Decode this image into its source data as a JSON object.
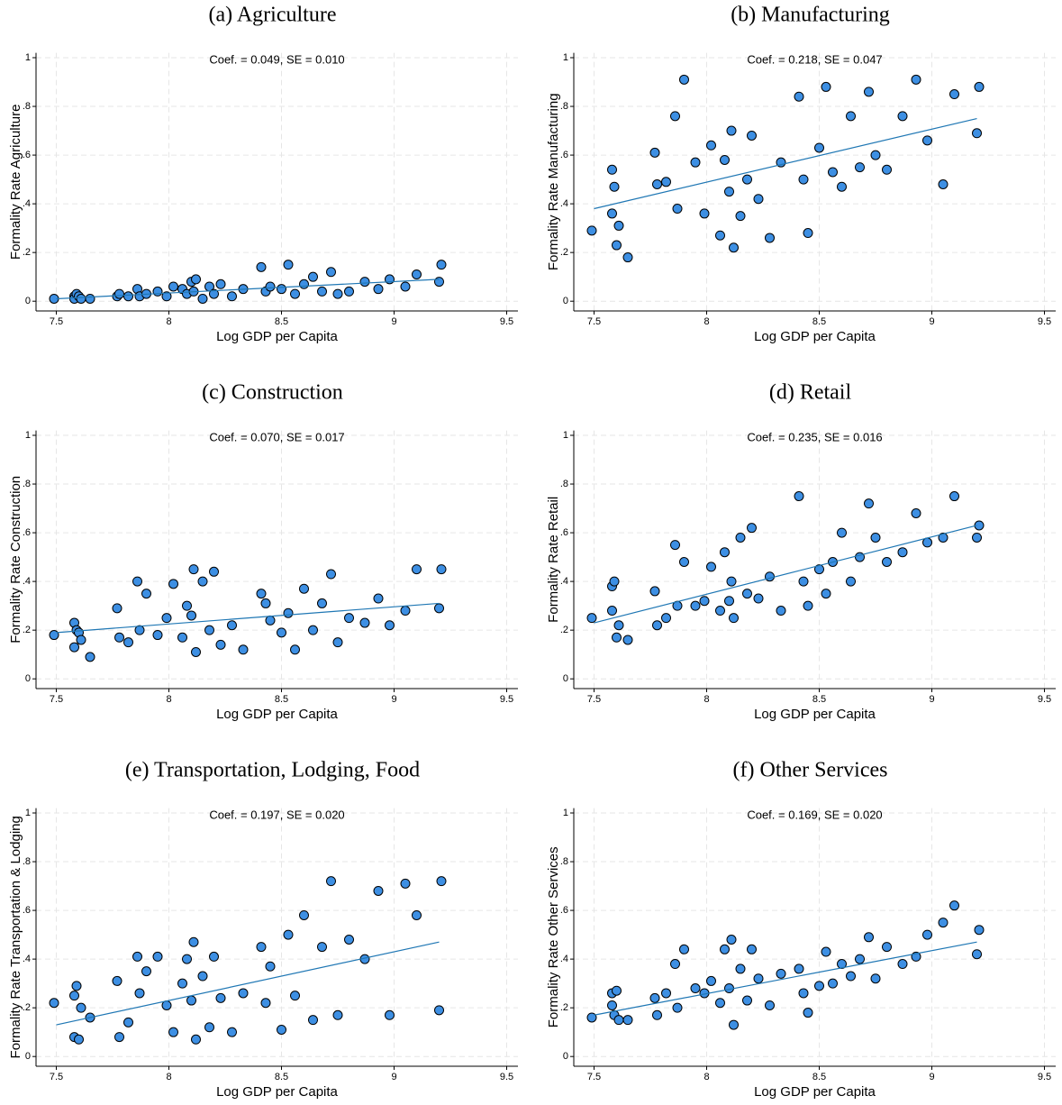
{
  "chart_data": [
    {
      "type": "scatter",
      "title": "(a)  Agriculture",
      "x_label": "Log GDP per Capita",
      "y_label": "Formality Rate Agriculture",
      "annotation": "Coef. =  0.049, SE =  0.010",
      "x": [
        7.49,
        7.58,
        7.58,
        7.59,
        7.6,
        7.61,
        7.65,
        7.77,
        7.78,
        7.82,
        7.86,
        7.87,
        7.9,
        7.95,
        7.99,
        8.02,
        8.06,
        8.08,
        8.1,
        8.11,
        8.12,
        8.15,
        8.18,
        8.2,
        8.23,
        8.28,
        8.33,
        8.41,
        8.43,
        8.45,
        8.5,
        8.53,
        8.56,
        8.6,
        8.64,
        8.68,
        8.72,
        8.75,
        8.8,
        8.87,
        8.93,
        8.98,
        9.05,
        9.1,
        9.2,
        9.21
      ],
      "y": [
        0.01,
        0.02,
        0.01,
        0.03,
        0.02,
        0.01,
        0.01,
        0.02,
        0.03,
        0.02,
        0.05,
        0.02,
        0.03,
        0.04,
        0.02,
        0.06,
        0.05,
        0.03,
        0.08,
        0.04,
        0.09,
        0.01,
        0.06,
        0.03,
        0.07,
        0.02,
        0.05,
        0.14,
        0.04,
        0.06,
        0.05,
        0.15,
        0.03,
        0.07,
        0.1,
        0.04,
        0.12,
        0.03,
        0.04,
        0.08,
        0.05,
        0.09,
        0.06,
        0.11,
        0.08,
        0.15
      ],
      "fit": {
        "x": [
          7.5,
          9.2
        ],
        "y": [
          0.01,
          0.09
        ]
      },
      "color": "#3d8fe3",
      "line_color": "#1f77b4",
      "grid": true,
      "xlim": [
        7.41,
        9.55
      ],
      "ylim": [
        -0.04,
        1.02
      ],
      "xticks": [
        7.5,
        8,
        8.5,
        9,
        9.5
      ],
      "yticks": [
        0,
        {
          "value": 0.2,
          "label": ".2"
        },
        {
          "value": 0.4,
          "label": ".4"
        },
        {
          "value": 0.6,
          "label": ".6"
        },
        {
          "value": 0.8,
          "label": ".8"
        },
        1
      ]
    },
    {
      "type": "scatter",
      "title": "(b)  Manufacturing",
      "x_label": "Log GDP per Capita",
      "y_label": "Formality Rate Manufacturing",
      "annotation": "Coef. =  0.218, SE =  0.047",
      "x": [
        7.49,
        7.58,
        7.58,
        7.59,
        7.6,
        7.61,
        7.65,
        7.77,
        7.78,
        7.82,
        7.86,
        7.87,
        7.9,
        7.95,
        7.99,
        8.02,
        8.06,
        8.08,
        8.1,
        8.11,
        8.12,
        8.15,
        8.18,
        8.2,
        8.23,
        8.28,
        8.33,
        8.41,
        8.43,
        8.45,
        8.5,
        8.53,
        8.56,
        8.6,
        8.64,
        8.68,
        8.72,
        8.75,
        8.8,
        8.87,
        8.93,
        8.98,
        9.05,
        9.1,
        9.2,
        9.21
      ],
      "y": [
        0.29,
        0.54,
        0.36,
        0.47,
        0.23,
        0.31,
        0.18,
        0.61,
        0.48,
        0.49,
        0.76,
        0.38,
        0.91,
        0.57,
        0.36,
        0.64,
        0.27,
        0.58,
        0.45,
        0.7,
        0.22,
        0.35,
        0.5,
        0.68,
        0.42,
        0.26,
        0.57,
        0.84,
        0.5,
        0.28,
        0.63,
        0.88,
        0.53,
        0.47,
        0.76,
        0.55,
        0.86,
        0.6,
        0.54,
        0.76,
        0.91,
        0.66,
        0.48,
        0.85,
        0.69,
        0.88
      ],
      "fit": {
        "x": [
          7.5,
          9.2
        ],
        "y": [
          0.38,
          0.75
        ]
      },
      "color": "#3d8fe3",
      "line_color": "#1f77b4",
      "grid": true,
      "xlim": [
        7.41,
        9.55
      ],
      "ylim": [
        -0.04,
        1.02
      ],
      "xticks": [
        7.5,
        8,
        8.5,
        9,
        9.5
      ],
      "yticks": [
        0,
        {
          "value": 0.2,
          "label": ".2"
        },
        {
          "value": 0.4,
          "label": ".4"
        },
        {
          "value": 0.6,
          "label": ".6"
        },
        {
          "value": 0.8,
          "label": ".8"
        },
        1
      ]
    },
    {
      "type": "scatter",
      "title": "(c)  Construction",
      "x_label": "Log GDP per Capita",
      "y_label": "Formality Rate Construction",
      "annotation": "Coef. =  0.070, SE =  0.017",
      "x": [
        7.49,
        7.58,
        7.58,
        7.59,
        7.6,
        7.61,
        7.65,
        7.77,
        7.78,
        7.82,
        7.86,
        7.87,
        7.9,
        7.95,
        7.99,
        8.02,
        8.06,
        8.08,
        8.1,
        8.11,
        8.12,
        8.15,
        8.18,
        8.2,
        8.23,
        8.28,
        8.33,
        8.41,
        8.43,
        8.45,
        8.5,
        8.53,
        8.56,
        8.6,
        8.64,
        8.68,
        8.72,
        8.75,
        8.8,
        8.87,
        8.93,
        8.98,
        9.05,
        9.1,
        9.2,
        9.21
      ],
      "y": [
        0.18,
        0.23,
        0.13,
        0.2,
        0.19,
        0.16,
        0.09,
        0.29,
        0.17,
        0.15,
        0.4,
        0.2,
        0.35,
        0.18,
        0.25,
        0.39,
        0.17,
        0.3,
        0.26,
        0.45,
        0.11,
        0.4,
        0.2,
        0.44,
        0.14,
        0.22,
        0.12,
        0.35,
        0.31,
        0.24,
        0.19,
        0.27,
        0.12,
        0.37,
        0.2,
        0.31,
        0.43,
        0.15,
        0.25,
        0.23,
        0.33,
        0.22,
        0.28,
        0.45,
        0.29,
        0.45
      ],
      "fit": {
        "x": [
          7.5,
          9.2
        ],
        "y": [
          0.19,
          0.31
        ]
      },
      "color": "#3d8fe3",
      "line_color": "#1f77b4",
      "grid": true,
      "xlim": [
        7.41,
        9.55
      ],
      "ylim": [
        -0.04,
        1.02
      ],
      "xticks": [
        7.5,
        8,
        8.5,
        9,
        9.5
      ],
      "yticks": [
        0,
        {
          "value": 0.2,
          "label": ".2"
        },
        {
          "value": 0.4,
          "label": ".4"
        },
        {
          "value": 0.6,
          "label": ".6"
        },
        {
          "value": 0.8,
          "label": ".8"
        },
        1
      ]
    },
    {
      "type": "scatter",
      "title": "(d)  Retail",
      "x_label": "Log GDP per Capita",
      "y_label": "Formality Rate Retail",
      "annotation": "Coef. =  0.235, SE =  0.016",
      "x": [
        7.49,
        7.58,
        7.58,
        7.59,
        7.6,
        7.61,
        7.65,
        7.77,
        7.78,
        7.82,
        7.86,
        7.87,
        7.9,
        7.95,
        7.99,
        8.02,
        8.06,
        8.08,
        8.1,
        8.11,
        8.12,
        8.15,
        8.18,
        8.2,
        8.23,
        8.28,
        8.33,
        8.41,
        8.43,
        8.45,
        8.5,
        8.53,
        8.56,
        8.6,
        8.64,
        8.68,
        8.72,
        8.75,
        8.8,
        8.87,
        8.93,
        8.98,
        9.05,
        9.1,
        9.2,
        9.21
      ],
      "y": [
        0.25,
        0.38,
        0.28,
        0.4,
        0.17,
        0.22,
        0.16,
        0.36,
        0.22,
        0.25,
        0.55,
        0.3,
        0.48,
        0.3,
        0.32,
        0.46,
        0.28,
        0.52,
        0.32,
        0.4,
        0.25,
        0.58,
        0.35,
        0.62,
        0.33,
        0.42,
        0.28,
        0.75,
        0.4,
        0.3,
        0.45,
        0.35,
        0.48,
        0.6,
        0.4,
        0.5,
        0.72,
        0.58,
        0.48,
        0.52,
        0.68,
        0.56,
        0.58,
        0.75,
        0.58,
        0.63
      ],
      "fit": {
        "x": [
          7.5,
          9.2
        ],
        "y": [
          0.23,
          0.63
        ]
      },
      "color": "#3d8fe3",
      "line_color": "#1f77b4",
      "grid": true,
      "xlim": [
        7.41,
        9.55
      ],
      "ylim": [
        -0.04,
        1.02
      ],
      "xticks": [
        7.5,
        8,
        8.5,
        9,
        9.5
      ],
      "yticks": [
        0,
        {
          "value": 0.2,
          "label": ".2"
        },
        {
          "value": 0.4,
          "label": ".4"
        },
        {
          "value": 0.6,
          "label": ".6"
        },
        {
          "value": 0.8,
          "label": ".8"
        },
        1
      ]
    },
    {
      "type": "scatter",
      "title": "(e)  Transportation, Lodging, Food",
      "x_label": "Log GDP per Capita",
      "y_label": "Formality Rate Transportation & Lodging",
      "annotation": "Coef. =  0.197, SE =  0.020",
      "x": [
        7.49,
        7.58,
        7.58,
        7.59,
        7.6,
        7.61,
        7.65,
        7.77,
        7.78,
        7.82,
        7.86,
        7.87,
        7.9,
        7.95,
        7.99,
        8.02,
        8.06,
        8.08,
        8.1,
        8.11,
        8.12,
        8.15,
        8.18,
        8.2,
        8.23,
        8.28,
        8.33,
        8.41,
        8.43,
        8.45,
        8.5,
        8.53,
        8.56,
        8.6,
        8.64,
        8.68,
        8.72,
        8.75,
        8.8,
        8.87,
        8.93,
        8.98,
        9.05,
        9.1,
        9.2,
        9.21
      ],
      "y": [
        0.22,
        0.25,
        0.08,
        0.29,
        0.07,
        0.2,
        0.16,
        0.31,
        0.08,
        0.14,
        0.41,
        0.26,
        0.35,
        0.41,
        0.21,
        0.1,
        0.3,
        0.4,
        0.23,
        0.47,
        0.07,
        0.33,
        0.12,
        0.41,
        0.24,
        0.1,
        0.26,
        0.45,
        0.22,
        0.37,
        0.11,
        0.5,
        0.25,
        0.58,
        0.15,
        0.45,
        0.72,
        0.17,
        0.48,
        0.4,
        0.68,
        0.17,
        0.71,
        0.58,
        0.19,
        0.72
      ],
      "fit": {
        "x": [
          7.5,
          9.2
        ],
        "y": [
          0.13,
          0.47
        ]
      },
      "color": "#3d8fe3",
      "line_color": "#1f77b4",
      "grid": true,
      "xlim": [
        7.41,
        9.55
      ],
      "ylim": [
        -0.04,
        1.02
      ],
      "xticks": [
        7.5,
        8,
        8.5,
        9,
        9.5
      ],
      "yticks": [
        0,
        {
          "value": 0.2,
          "label": ".2"
        },
        {
          "value": 0.4,
          "label": ".4"
        },
        {
          "value": 0.6,
          "label": ".6"
        },
        {
          "value": 0.8,
          "label": ".8"
        },
        1
      ]
    },
    {
      "type": "scatter",
      "title": "(f)  Other Services",
      "x_label": "Log GDP per Capita",
      "y_label": "Formality Rate Other Services",
      "annotation": "Coef. =  0.169, SE =  0.020",
      "x": [
        7.49,
        7.58,
        7.58,
        7.59,
        7.6,
        7.61,
        7.65,
        7.77,
        7.78,
        7.82,
        7.86,
        7.87,
        7.9,
        7.95,
        7.99,
        8.02,
        8.06,
        8.08,
        8.1,
        8.11,
        8.12,
        8.15,
        8.18,
        8.2,
        8.23,
        8.28,
        8.33,
        8.41,
        8.43,
        8.45,
        8.5,
        8.53,
        8.56,
        8.6,
        8.64,
        8.68,
        8.72,
        8.75,
        8.8,
        8.87,
        8.93,
        8.98,
        9.05,
        9.1,
        9.2,
        9.21
      ],
      "y": [
        0.16,
        0.26,
        0.21,
        0.17,
        0.27,
        0.15,
        0.15,
        0.24,
        0.17,
        0.26,
        0.38,
        0.2,
        0.44,
        0.28,
        0.26,
        0.31,
        0.22,
        0.44,
        0.28,
        0.48,
        0.13,
        0.36,
        0.23,
        0.44,
        0.32,
        0.21,
        0.34,
        0.36,
        0.26,
        0.18,
        0.29,
        0.43,
        0.3,
        0.38,
        0.33,
        0.4,
        0.49,
        0.32,
        0.45,
        0.38,
        0.41,
        0.5,
        0.55,
        0.62,
        0.42,
        0.52
      ],
      "fit": {
        "x": [
          7.5,
          9.2
        ],
        "y": [
          0.17,
          0.47
        ]
      },
      "color": "#3d8fe3",
      "line_color": "#1f77b4",
      "grid": true,
      "xlim": [
        7.41,
        9.55
      ],
      "ylim": [
        -0.04,
        1.02
      ],
      "xticks": [
        7.5,
        8,
        8.5,
        9,
        9.5
      ],
      "yticks": [
        0,
        {
          "value": 0.2,
          "label": ".2"
        },
        {
          "value": 0.4,
          "label": ".4"
        },
        {
          "value": 0.6,
          "label": ".6"
        },
        {
          "value": 0.8,
          "label": ".8"
        },
        1
      ]
    }
  ]
}
